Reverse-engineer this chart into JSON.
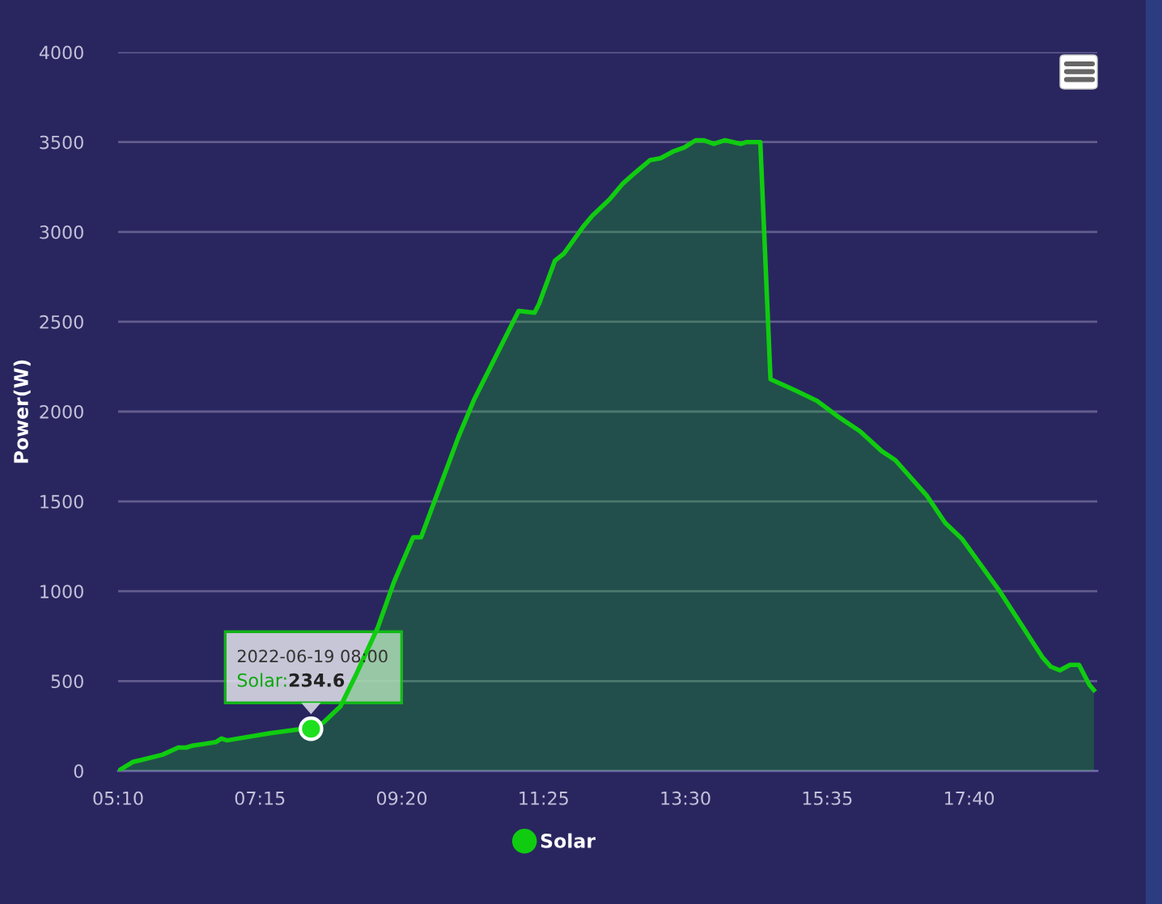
{
  "chart_data": {
    "type": "area",
    "ylabel": "Power(W)",
    "x": [
      5.1667,
      5.383,
      5.5,
      5.817,
      6.05,
      6.167,
      6.25,
      6.6,
      6.683,
      6.767,
      7.4,
      7.8,
      8.0,
      8.183,
      8.433,
      8.667,
      8.983,
      9.217,
      9.5,
      9.617,
      10.167,
      10.4,
      11.05,
      11.283,
      11.35,
      11.583,
      11.717,
      12.0,
      12.133,
      12.383,
      12.583,
      12.733,
      12.983,
      13.133,
      13.333,
      13.483,
      13.65,
      13.767,
      13.917,
      14.083,
      14.317,
      14.4,
      14.6,
      14.75,
      15.1,
      15.433,
      15.75,
      16.067,
      16.383,
      16.583,
      17.05,
      17.317,
      17.567,
      18.117,
      18.75,
      18.867,
      19.0,
      19.15,
      19.283,
      19.433,
      19.5
    ],
    "series": [
      {
        "name": "Solar",
        "color": "#10cc10",
        "values": [
          0,
          50,
          60,
          90,
          130,
          130,
          140,
          160,
          180,
          170,
          210,
          230,
          234.6,
          270,
          360,
          540,
          800,
          1050,
          1300,
          1300,
          1860,
          2070,
          2560,
          2550,
          2600,
          2840,
          2880,
          3030,
          3090,
          3180,
          3270,
          3320,
          3400,
          3410,
          3450,
          3470,
          3510,
          3510,
          3490,
          3510,
          3490,
          3500,
          3500,
          2180,
          2120,
          2060,
          1970,
          1890,
          1780,
          1730,
          1530,
          1380,
          1290,
          1000,
          630,
          580,
          560,
          590,
          590,
          480,
          450
        ]
      },
      {
        "type": "scatter",
        "color": "#1ee01e",
        "marker": "circle",
        "x": [
          8.0
        ],
        "values": [
          234.6
        ]
      }
    ],
    "xlim": [
      5.1667,
      19.55
    ],
    "xticks": [
      {
        "value": 5.1667,
        "label": "05:10"
      },
      {
        "value": 7.25,
        "label": "07:15"
      },
      {
        "value": 9.3333,
        "label": "09:20"
      },
      {
        "value": 11.4167,
        "label": "11:25"
      },
      {
        "value": 13.5,
        "label": "13:30"
      },
      {
        "value": 15.5833,
        "label": "15:35"
      },
      {
        "value": 17.6667,
        "label": "17:40"
      }
    ],
    "ylim": [
      0,
      4000
    ],
    "yticks": [
      0,
      500,
      1000,
      1500,
      2000,
      2500,
      3000,
      3500,
      4000
    ],
    "grid": "y",
    "legend": "bottom",
    "line_style": "solid",
    "annotations": [
      "2022-06-19 08:00",
      {
        "text": "Solar:234.6",
        "x": 8.0,
        "y": 234.6
      }
    ]
  }
}
